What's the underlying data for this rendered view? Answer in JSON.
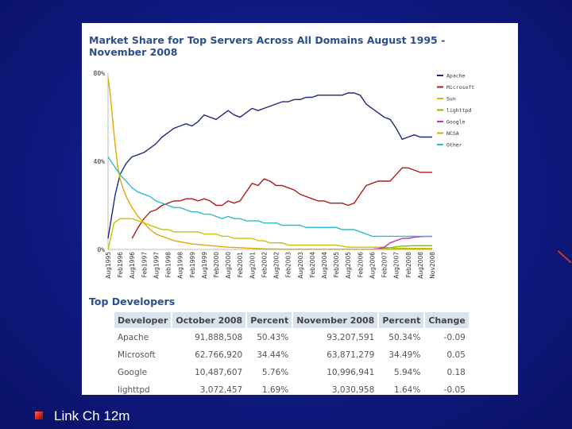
{
  "chart_data": {
    "type": "line",
    "title": "Market Share for Top Servers Across All Domains August 1995 - November 2008",
    "y_tick_labels": [
      "80%",
      "40%",
      "0%"
    ],
    "y_ticks": [
      80,
      40,
      0
    ],
    "ylim": [
      0,
      80
    ],
    "x_tick_labels": [
      "Aug1995",
      "Feb1996",
      "Aug1996",
      "Feb1997",
      "Aug1997",
      "Feb1998",
      "Aug1998",
      "Feb1999",
      "Aug1999",
      "Feb2000",
      "Aug2000",
      "Feb2001",
      "Aug2001",
      "Feb2002",
      "Aug2002",
      "Feb2003",
      "Aug2003",
      "Feb2004",
      "Aug2004",
      "Feb2005",
      "Aug2005",
      "Feb2006",
      "Aug2006",
      "Feb2007",
      "Aug2007",
      "Feb2008",
      "Aug2008",
      "Nov2008"
    ],
    "legend_position": "top-right",
    "series": [
      {
        "name": "Apache",
        "color": "#1f2a7a",
        "points": [
          [
            0,
            5
          ],
          [
            0.3,
            15
          ],
          [
            0.6,
            25
          ],
          [
            1,
            34
          ],
          [
            1.5,
            39
          ],
          [
            2,
            42
          ],
          [
            2.5,
            43
          ],
          [
            3,
            44
          ],
          [
            3.5,
            46
          ],
          [
            4,
            48
          ],
          [
            4.5,
            51
          ],
          [
            5,
            53
          ],
          [
            5.5,
            55
          ],
          [
            6,
            56
          ],
          [
            6.5,
            57
          ],
          [
            7,
            56
          ],
          [
            7.5,
            58
          ],
          [
            8,
            61
          ],
          [
            8.5,
            60
          ],
          [
            9,
            59
          ],
          [
            9.5,
            61
          ],
          [
            10,
            63
          ],
          [
            10.5,
            61
          ],
          [
            11,
            60
          ],
          [
            11.5,
            62
          ],
          [
            12,
            64
          ],
          [
            12.5,
            63
          ],
          [
            13,
            64
          ],
          [
            13.5,
            65
          ],
          [
            14,
            66
          ],
          [
            14.5,
            67
          ],
          [
            15,
            67
          ],
          [
            15.5,
            68
          ],
          [
            16,
            68
          ],
          [
            16.5,
            69
          ],
          [
            17,
            69
          ],
          [
            17.5,
            70
          ],
          [
            18,
            70
          ],
          [
            18.5,
            70
          ],
          [
            19,
            70
          ],
          [
            19.5,
            70
          ],
          [
            20,
            71
          ],
          [
            20.5,
            71
          ],
          [
            21,
            70
          ],
          [
            21.5,
            66
          ],
          [
            22,
            64
          ],
          [
            22.5,
            62
          ],
          [
            23,
            60
          ],
          [
            23.5,
            59
          ],
          [
            24,
            55
          ],
          [
            24.5,
            50
          ],
          [
            25,
            51
          ],
          [
            25.5,
            52
          ],
          [
            26,
            51
          ],
          [
            26.5,
            51
          ],
          [
            27,
            51
          ]
        ]
      },
      {
        "name": "Microsoft",
        "color": "#b01a1a",
        "points": [
          [
            2,
            5
          ],
          [
            2.5,
            10
          ],
          [
            3,
            14
          ],
          [
            3.5,
            17
          ],
          [
            4,
            18
          ],
          [
            4.5,
            20
          ],
          [
            5,
            21
          ],
          [
            5.5,
            22
          ],
          [
            6,
            22
          ],
          [
            6.5,
            23
          ],
          [
            7,
            23
          ],
          [
            7.5,
            22
          ],
          [
            8,
            23
          ],
          [
            8.5,
            22
          ],
          [
            9,
            20
          ],
          [
            9.5,
            20
          ],
          [
            10,
            22
          ],
          [
            10.5,
            21
          ],
          [
            11,
            22
          ],
          [
            11.5,
            26
          ],
          [
            12,
            30
          ],
          [
            12.5,
            29
          ],
          [
            13,
            32
          ],
          [
            13.5,
            31
          ],
          [
            14,
            29
          ],
          [
            14.5,
            29
          ],
          [
            15,
            28
          ],
          [
            15.5,
            27
          ],
          [
            16,
            25
          ],
          [
            16.5,
            24
          ],
          [
            17,
            23
          ],
          [
            17.5,
            22
          ],
          [
            18,
            22
          ],
          [
            18.5,
            21
          ],
          [
            19,
            21
          ],
          [
            19.5,
            21
          ],
          [
            20,
            20
          ],
          [
            20.5,
            21
          ],
          [
            21,
            25
          ],
          [
            21.5,
            29
          ],
          [
            22,
            30
          ],
          [
            22.5,
            31
          ],
          [
            23,
            31
          ],
          [
            23.5,
            31
          ],
          [
            24,
            34
          ],
          [
            24.5,
            37
          ],
          [
            25,
            37
          ],
          [
            25.5,
            36
          ],
          [
            26,
            35
          ],
          [
            26.5,
            35
          ],
          [
            27,
            35
          ]
        ]
      },
      {
        "name": "Sun",
        "color": "#c8c200",
        "points": [
          [
            0,
            0
          ],
          [
            0.5,
            12
          ],
          [
            1,
            14
          ],
          [
            1.5,
            14
          ],
          [
            2,
            14
          ],
          [
            2.5,
            13
          ],
          [
            3,
            12
          ],
          [
            3.5,
            11
          ],
          [
            4,
            10
          ],
          [
            4.5,
            9
          ],
          [
            5,
            9
          ],
          [
            5.5,
            8
          ],
          [
            6,
            8
          ],
          [
            6.5,
            8
          ],
          [
            7,
            8
          ],
          [
            7.5,
            8
          ],
          [
            8,
            7
          ],
          [
            8.5,
            7
          ],
          [
            9,
            7
          ],
          [
            9.5,
            6
          ],
          [
            10,
            6
          ],
          [
            10.5,
            5
          ],
          [
            11,
            5
          ],
          [
            11.5,
            5
          ],
          [
            12,
            5
          ],
          [
            12.5,
            4
          ],
          [
            13,
            4
          ],
          [
            13.5,
            3
          ],
          [
            14,
            3
          ],
          [
            14.5,
            3
          ],
          [
            15,
            2
          ],
          [
            16,
            2
          ],
          [
            17,
            2
          ],
          [
            18,
            2
          ],
          [
            19,
            2
          ],
          [
            20,
            1
          ],
          [
            21,
            1
          ],
          [
            22,
            1
          ],
          [
            23,
            1
          ],
          [
            24,
            0.5
          ],
          [
            25,
            0.5
          ],
          [
            26,
            0.5
          ],
          [
            27,
            0.5
          ]
        ]
      },
      {
        "name": "lighttpd",
        "color": "#7fbf00",
        "points": [
          [
            22,
            0.1
          ],
          [
            22.5,
            0.3
          ],
          [
            23,
            0.5
          ],
          [
            23.5,
            0.8
          ],
          [
            24,
            1.2
          ],
          [
            24.5,
            1.5
          ],
          [
            25,
            1.6
          ],
          [
            25.5,
            1.7
          ],
          [
            26,
            1.7
          ],
          [
            27,
            1.7
          ]
        ]
      },
      {
        "name": "Google",
        "color": "#cc22cc",
        "points": [
          [
            22,
            0.1
          ],
          [
            22.5,
            0.4
          ],
          [
            23,
            1
          ],
          [
            23.5,
            3
          ],
          [
            24,
            4
          ],
          [
            24.5,
            5
          ],
          [
            25,
            5
          ],
          [
            25.5,
            5.5
          ],
          [
            26,
            5.8
          ],
          [
            26.5,
            5.9
          ],
          [
            27,
            5.9
          ]
        ]
      },
      {
        "name": "NCSA",
        "color": "#e0a800",
        "points": [
          [
            0,
            78
          ],
          [
            0.2,
            70
          ],
          [
            0.4,
            58
          ],
          [
            0.6,
            47
          ],
          [
            0.8,
            38
          ],
          [
            1,
            32
          ],
          [
            1.3,
            27
          ],
          [
            1.6,
            23
          ],
          [
            2,
            19
          ],
          [
            2.5,
            15
          ],
          [
            3,
            12
          ],
          [
            3.5,
            9
          ],
          [
            4,
            7
          ],
          [
            4.5,
            6
          ],
          [
            5,
            5
          ],
          [
            5.5,
            4
          ],
          [
            6,
            3.5
          ],
          [
            6.5,
            3
          ],
          [
            7,
            2.5
          ],
          [
            8,
            2
          ],
          [
            9,
            1.5
          ],
          [
            10,
            1
          ],
          [
            11,
            0.8
          ],
          [
            12,
            0.5
          ],
          [
            13,
            0.3
          ],
          [
            14,
            0.2
          ],
          [
            15,
            0.1
          ],
          [
            17,
            0.1
          ],
          [
            19,
            0.1
          ],
          [
            21,
            0.1
          ],
          [
            23,
            0.1
          ],
          [
            25,
            0.1
          ],
          [
            27,
            0.1
          ]
        ]
      },
      {
        "name": "Other",
        "color": "#2bbccc",
        "points": [
          [
            0,
            42
          ],
          [
            0.5,
            38
          ],
          [
            1,
            34
          ],
          [
            1.5,
            31
          ],
          [
            2,
            28
          ],
          [
            2.5,
            26
          ],
          [
            3,
            25
          ],
          [
            3.5,
            24
          ],
          [
            4,
            22
          ],
          [
            4.5,
            21
          ],
          [
            5,
            20
          ],
          [
            5.5,
            19
          ],
          [
            6,
            19
          ],
          [
            6.5,
            18
          ],
          [
            7,
            17
          ],
          [
            7.5,
            17
          ],
          [
            8,
            16
          ],
          [
            8.5,
            16
          ],
          [
            9,
            15
          ],
          [
            9.5,
            14
          ],
          [
            10,
            15
          ],
          [
            10.5,
            14
          ],
          [
            11,
            14
          ],
          [
            11.5,
            13
          ],
          [
            12,
            13
          ],
          [
            12.5,
            13
          ],
          [
            13,
            12
          ],
          [
            13.5,
            12
          ],
          [
            14,
            12
          ],
          [
            14.5,
            11
          ],
          [
            15,
            11
          ],
          [
            15.5,
            11
          ],
          [
            16,
            11
          ],
          [
            16.5,
            10
          ],
          [
            17,
            10
          ],
          [
            17.5,
            10
          ],
          [
            18,
            10
          ],
          [
            18.5,
            10
          ],
          [
            19,
            10
          ],
          [
            19.5,
            9
          ],
          [
            20,
            9
          ],
          [
            20.5,
            9
          ],
          [
            21,
            8
          ],
          [
            21.5,
            7
          ],
          [
            22,
            6
          ],
          [
            22.5,
            6
          ],
          [
            23,
            6
          ],
          [
            23.5,
            6
          ],
          [
            24,
            6
          ],
          [
            24.5,
            6
          ],
          [
            25,
            6
          ],
          [
            25.5,
            6
          ],
          [
            26,
            6
          ],
          [
            26.5,
            6
          ],
          [
            27,
            6
          ]
        ]
      }
    ]
  },
  "developers": {
    "heading": "Top Developers",
    "columns": [
      "Developer",
      "October 2008",
      "Percent",
      "November 2008",
      "Percent",
      "Change"
    ],
    "rows": [
      [
        "Apache",
        "91,888,508",
        "50.43%",
        "93,207,591",
        "50.34%",
        "-0.09"
      ],
      [
        "Microsoft",
        "62,766,920",
        "34.44%",
        "63,871,279",
        "34.49%",
        "0.05"
      ],
      [
        "Google",
        "10,487,607",
        "5.76%",
        "10,996,941",
        "5.94%",
        "0.18"
      ],
      [
        "lighttpd",
        "3,072,457",
        "1.69%",
        "3,030,958",
        "1.64%",
        "-0.05"
      ]
    ]
  },
  "slide": {
    "bullet_text": "Link Ch 12m"
  }
}
